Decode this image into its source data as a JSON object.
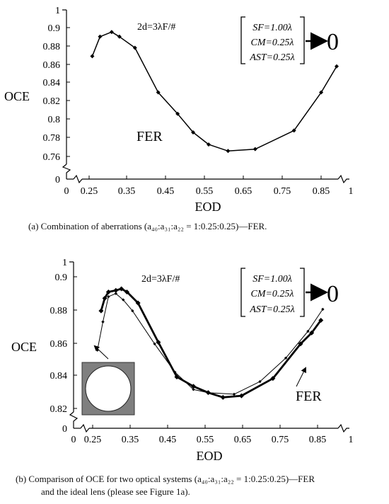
{
  "charts": [
    {
      "ylabel": "OCE",
      "xlabel": "EOD",
      "formula": "2d=3λF/#",
      "box_lines": [
        "SF=1.00λ",
        "CM=0.25λ",
        "AST=0.25λ"
      ],
      "arrow_target": "0",
      "series_label": "FER",
      "caption": "(a)  Combination of aberrations (a₄₀:a₃₁:a₂₂ = 1:0.25:0.25)—FER."
    },
    {
      "ylabel": "OCE",
      "xlabel": "EOD",
      "formula": "2d=3λF/#",
      "box_lines": [
        "SF=1.00λ",
        "CM=0.25λ",
        "AST=0.25λ"
      ],
      "arrow_target": "0",
      "series_label": "FER",
      "caption_line1": "(b)   Comparison of OCE for two optical systems (a₄₀:a₃₁:a₂₂ = 1:0.25:0.25)—FER",
      "caption_line2": "and the ideal lens (please see Figure 1a)."
    }
  ],
  "chart_data": [
    {
      "type": "line",
      "xlabel": "EOD",
      "ylabel": "OCE",
      "x_ticks": [
        "0",
        "0.25",
        "0.35",
        "0.45",
        "0.55",
        "0.65",
        "0.75",
        "0.85",
        "1"
      ],
      "y_ticks": [
        "0",
        "0.76",
        "0.78",
        "0.8",
        "0.82",
        "0.84",
        "0.86",
        "0.88",
        "0.9",
        "1"
      ],
      "xlim": [
        0.22,
        0.88
      ],
      "ylim": [
        0.755,
        0.905
      ],
      "axis_breaks": true,
      "grid": false,
      "series": [
        {
          "name": "FER",
          "x": [
            0.25,
            0.27,
            0.3,
            0.32,
            0.36,
            0.42,
            0.47,
            0.51,
            0.55,
            0.6,
            0.67,
            0.77,
            0.84,
            0.88
          ],
          "y": [
            0.872,
            0.893,
            0.898,
            0.893,
            0.881,
            0.833,
            0.81,
            0.79,
            0.777,
            0.77,
            0.772,
            0.792,
            0.833,
            0.861
          ]
        }
      ]
    },
    {
      "type": "line",
      "xlabel": "EOD",
      "ylabel": "OCE",
      "x_ticks": [
        "0",
        "0.25",
        "0.35",
        "0.45",
        "0.55",
        "0.65",
        "0.75",
        "0.85",
        "1"
      ],
      "y_ticks": [
        "0",
        "0.82",
        "0.84",
        "0.86",
        "0.88",
        "0.9",
        "1"
      ],
      "xlim": [
        0.22,
        0.89
      ],
      "ylim": [
        0.815,
        0.905
      ],
      "axis_breaks": true,
      "grid": false,
      "series": [
        {
          "name": "FER",
          "x": [
            0.26,
            0.27,
            0.28,
            0.3,
            0.315,
            0.33,
            0.36,
            0.415,
            0.465,
            0.51,
            0.55,
            0.59,
            0.64,
            0.725,
            0.8,
            0.83,
            0.855
          ],
          "y": [
            0.882,
            0.89,
            0.894,
            0.895,
            0.896,
            0.894,
            0.887,
            0.862,
            0.84,
            0.834,
            0.83,
            0.827,
            0.828,
            0.839,
            0.861,
            0.868,
            0.876
          ]
        },
        {
          "name": "ideal lens",
          "x": [
            0.25,
            0.265,
            0.28,
            0.3,
            0.32,
            0.345,
            0.405,
            0.46,
            0.51,
            0.55,
            0.62,
            0.69,
            0.76,
            0.82,
            0.86
          ],
          "y": [
            0.857,
            0.875,
            0.891,
            0.893,
            0.889,
            0.882,
            0.861,
            0.843,
            0.832,
            0.83,
            0.829,
            0.837,
            0.852,
            0.869,
            0.883
          ]
        }
      ]
    }
  ]
}
